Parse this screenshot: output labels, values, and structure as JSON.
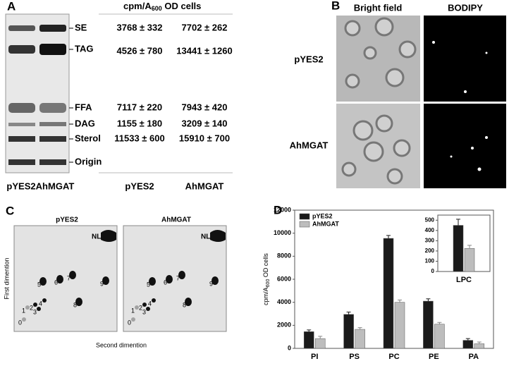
{
  "panel_a": {
    "letter": "A",
    "header": {
      "prefix": "cpm/A",
      "sub": "600",
      "suffix": " OD cells"
    },
    "bands": [
      "SE",
      "TAG",
      "FFA",
      "DAG",
      "Sterol",
      "Origin"
    ],
    "rows": [
      [
        "3768 ± 332",
        "7702 ± 262"
      ],
      [
        "4526 ± 780",
        "13441 ± 1260"
      ],
      [
        "7117 ± 220",
        "7943 ± 420"
      ],
      [
        "1155 ± 180",
        "3209 ± 140"
      ],
      [
        "11533 ± 600",
        "15910 ± 700"
      ]
    ],
    "lanes": [
      "pYES2",
      "AhMGAT"
    ],
    "columns": [
      "pYES2",
      "AhMGAT"
    ]
  },
  "panel_b": {
    "letter": "B",
    "columns": [
      "Bright field",
      "BODIPY"
    ],
    "rows": [
      "pYES2",
      "AhMGAT"
    ]
  },
  "panel_c": {
    "letter": "C",
    "plates": [
      "pYES2",
      "AhMGAT"
    ],
    "spot_label": "NL",
    "spots": [
      "0",
      "1",
      "2",
      "3",
      "4",
      "5",
      "6",
      "7",
      "8",
      "9"
    ],
    "y_axis": "First dimention",
    "x_axis": "Second dimention"
  },
  "chart_data": {
    "type": "bar",
    "letter": "D",
    "y_label": {
      "prefix": "cpm/A",
      "sub": "600",
      "suffix": " OD cells"
    },
    "categories": [
      "PI",
      "PS",
      "PC",
      "PE",
      "PA"
    ],
    "series": [
      {
        "name": "pYES2",
        "color": "#1a1a1a",
        "values": [
          1450,
          2950,
          9550,
          4100,
          700
        ],
        "errors": [
          150,
          200,
          250,
          200,
          150
        ]
      },
      {
        "name": "AhMGAT",
        "color": "#bdbdbd",
        "values": [
          850,
          1650,
          4000,
          2100,
          400
        ],
        "errors": [
          200,
          150,
          200,
          150,
          150
        ]
      }
    ],
    "ylim": [
      0,
      12000
    ],
    "yticks": [
      0,
      2000,
      4000,
      6000,
      8000,
      10000,
      12000
    ],
    "legend": "upper left",
    "inset": {
      "categories": [
        "LPC"
      ],
      "series": [
        {
          "values": [
            450
          ],
          "errors": [
            60
          ]
        },
        {
          "values": [
            225
          ],
          "errors": [
            30
          ]
        }
      ],
      "ylim": [
        0,
        550
      ],
      "yticks": [
        0,
        100,
        200,
        300,
        400,
        500
      ]
    }
  }
}
